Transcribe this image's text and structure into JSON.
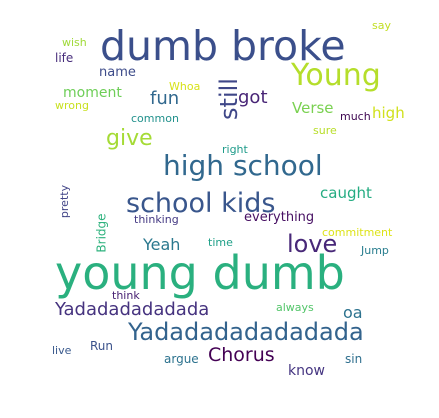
{
  "words": [
    {
      "text": "dumb broke",
      "color": "#3b4f8b"
    },
    {
      "text": "Young",
      "color": "#b5de2b"
    },
    {
      "text": "wish",
      "color": "#a0da39"
    },
    {
      "text": "say",
      "color": "#c2df23"
    },
    {
      "text": "life",
      "color": "#472d7b"
    },
    {
      "text": "name",
      "color": "#3e4c8a"
    },
    {
      "text": "Whoa",
      "color": "#d8e219"
    },
    {
      "text": "moment",
      "color": "#6ece58"
    },
    {
      "text": "wrong",
      "color": "#c8e020"
    },
    {
      "text": "fun",
      "color": "#31688e"
    },
    {
      "text": "got",
      "color": "#482576"
    },
    {
      "text": "still",
      "color": "#3f4788"
    },
    {
      "text": "Verse",
      "color": "#7ad151"
    },
    {
      "text": "high",
      "color": "#d0e11c"
    },
    {
      "text": "much",
      "color": "#3e0751"
    },
    {
      "text": "common",
      "color": "#21918c"
    },
    {
      "text": "sure",
      "color": "#b8de29"
    },
    {
      "text": "give",
      "color": "#a5db36"
    },
    {
      "text": "right",
      "color": "#1e9b8a"
    },
    {
      "text": "high school",
      "color": "#31688e"
    },
    {
      "text": "pretty",
      "color": "#414487"
    },
    {
      "text": "caught",
      "color": "#25ac82"
    },
    {
      "text": "school kids",
      "color": "#39568c"
    },
    {
      "text": "thinking",
      "color": "#443983"
    },
    {
      "text": "everything",
      "color": "#471063"
    },
    {
      "text": "commitment",
      "color": "#dde318"
    },
    {
      "text": "Bridge",
      "color": "#2db27d"
    },
    {
      "text": "Yeah",
      "color": "#2a788e"
    },
    {
      "text": "love",
      "color": "#482878"
    },
    {
      "text": "time",
      "color": "#1fa088"
    },
    {
      "text": "Jump",
      "color": "#287d8e"
    },
    {
      "text": "young dumb",
      "color": "#2ab07f"
    },
    {
      "text": "think",
      "color": "#482173"
    },
    {
      "text": "Yadadadadadada",
      "color": "#46337f"
    },
    {
      "text": "oa",
      "color": "#2c728e"
    },
    {
      "text": "always",
      "color": "#52c569"
    },
    {
      "text": "Yadadadadadadada",
      "color": "#33638d"
    },
    {
      "text": "live",
      "color": "#38588c"
    },
    {
      "text": "Run",
      "color": "#3b528b"
    },
    {
      "text": "argue",
      "color": "#2c728e"
    },
    {
      "text": "Chorus",
      "color": "#440154"
    },
    {
      "text": "sin",
      "color": "#2e6f8e"
    },
    {
      "text": "know",
      "color": "#453581"
    }
  ]
}
